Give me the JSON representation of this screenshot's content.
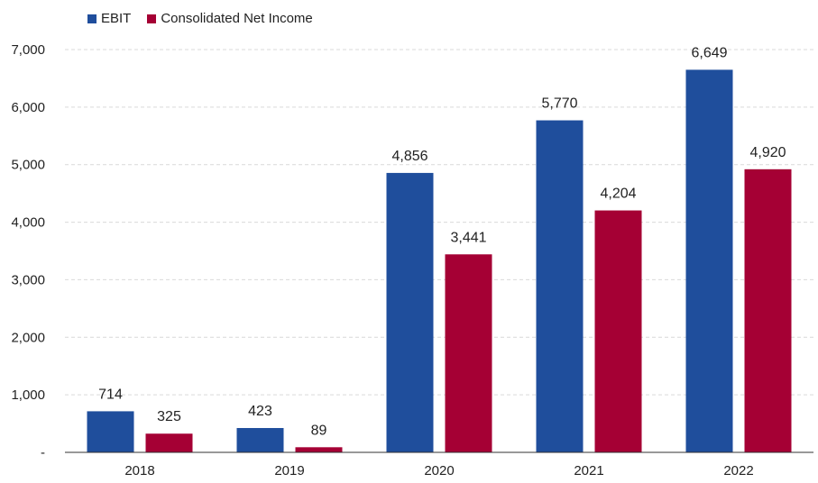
{
  "chart_data": {
    "type": "bar",
    "categories": [
      "2018",
      "2019",
      "2020",
      "2021",
      "2022"
    ],
    "series": [
      {
        "name": "EBIT",
        "color": "#1f4e9c",
        "values": [
          714,
          423,
          4856,
          5770,
          6649
        ],
        "labels": [
          "714",
          "423",
          "4,856",
          "5,770",
          "6,649"
        ]
      },
      {
        "name": "Consolidated Net Income",
        "color": "#a50034",
        "values": [
          325,
          89,
          3441,
          4204,
          4920
        ],
        "labels": [
          "325",
          "89",
          "3,441",
          "4,204",
          "4,920"
        ]
      }
    ],
    "ylim": [
      0,
      7000
    ],
    "yticks": [
      0,
      1000,
      2000,
      3000,
      4000,
      5000,
      6000,
      7000
    ],
    "ytick_labels": [
      "-",
      "1,000",
      "2,000",
      "3,000",
      "4,000",
      "5,000",
      "6,000",
      "7,000"
    ],
    "grid": true,
    "legend_position": "top-left",
    "title": "",
    "xlabel": "",
    "ylabel": ""
  }
}
